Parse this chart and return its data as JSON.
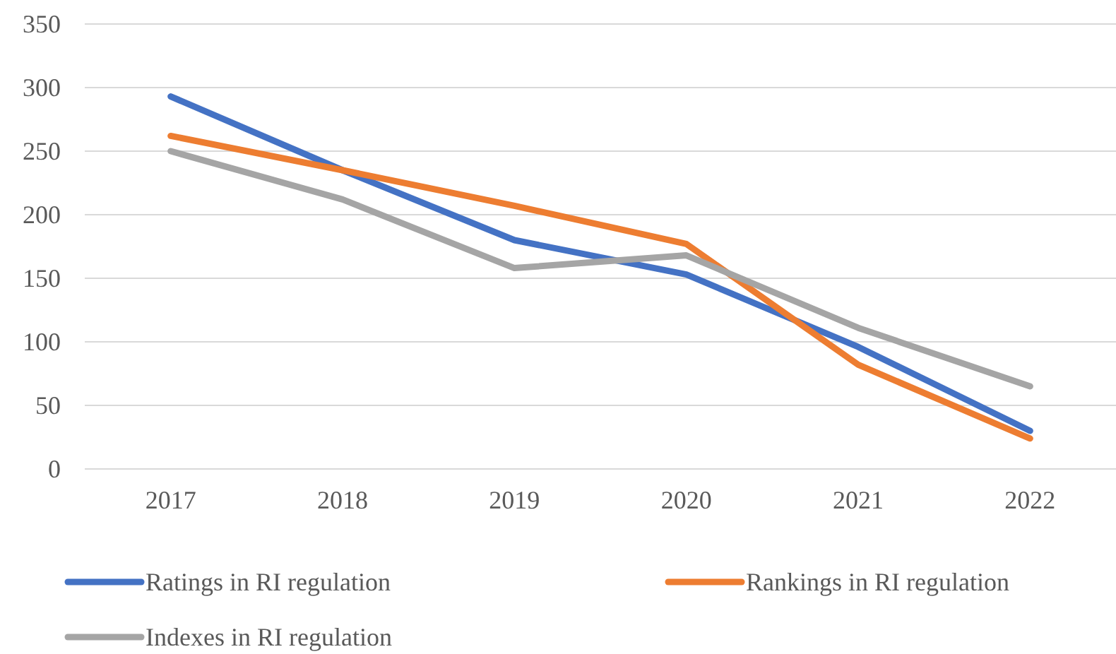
{
  "chart_data": {
    "type": "line",
    "categories": [
      "2017",
      "2018",
      "2019",
      "2020",
      "2021",
      "2022"
    ],
    "series": [
      {
        "name": "Ratings in RI regulation",
        "color": "#4472c4",
        "values": [
          293,
          235,
          180,
          153,
          96,
          30
        ]
      },
      {
        "name": "Rankings in RI regulation",
        "color": "#ed7d31",
        "values": [
          262,
          235,
          207,
          177,
          82,
          24
        ]
      },
      {
        "name": "Indexes in RI regulation",
        "color": "#a5a5a5",
        "values": [
          250,
          212,
          158,
          168,
          111,
          65
        ]
      }
    ],
    "ylim": [
      0,
      350
    ],
    "yticks": [
      0,
      50,
      100,
      150,
      200,
      250,
      300,
      350
    ],
    "grid": "y",
    "legend": "bottom",
    "marker": "none",
    "line_style": "solid"
  }
}
